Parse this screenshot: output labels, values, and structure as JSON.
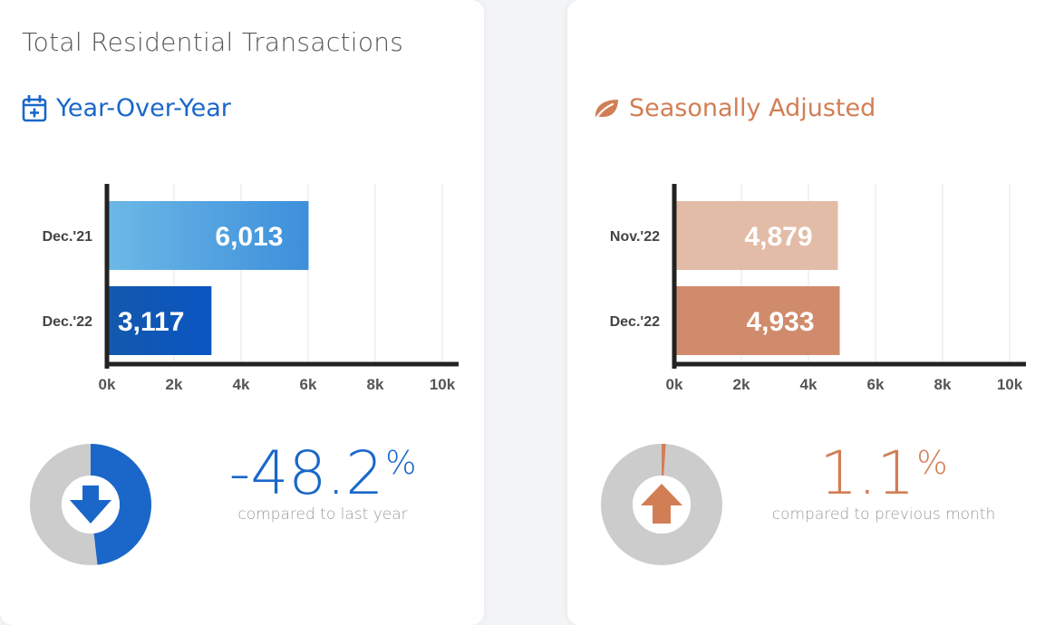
{
  "page_title": "Total Residential Transactions",
  "panels": [
    {
      "heading": "Year-Over-Year",
      "heading_icon": "calendar-plus-icon",
      "accent_color": "#1a67c9",
      "change": {
        "value": "-48.2",
        "unit": "%",
        "caption": "compared to last year",
        "direction": "down",
        "share_fraction": 0.482
      }
    },
    {
      "heading": "Seasonally Adjusted",
      "heading_icon": "leaf-icon",
      "accent_color": "#d27e55",
      "change": {
        "value": "1.1",
        "unit": "%",
        "caption": "compared to previous month",
        "direction": "up",
        "share_fraction": 0.011
      }
    }
  ],
  "chart_data": [
    {
      "type": "bar",
      "orientation": "horizontal",
      "categories": [
        "Dec.'21",
        "Dec.'22"
      ],
      "values": [
        6013,
        3117
      ],
      "value_labels": [
        "6,013",
        "3,117"
      ],
      "bar_colors": [
        [
          "#6cb8e6",
          "#3d8fdb"
        ],
        [
          "#1458ad",
          "#0a56c2"
        ]
      ],
      "xlim": [
        0,
        10000
      ],
      "xticks": [
        "0k",
        "2k",
        "4k",
        "6k",
        "8k",
        "10k"
      ],
      "grid": true
    },
    {
      "type": "bar",
      "orientation": "horizontal",
      "categories": [
        "Nov.'22",
        "Dec.'22"
      ],
      "values": [
        4879,
        4933
      ],
      "value_labels": [
        "4,879",
        "4,933"
      ],
      "bar_colors": [
        [
          "#e2bca7",
          "#e2bca7"
        ],
        [
          "#d08b6c",
          "#d08b6c"
        ]
      ],
      "xlim": [
        0,
        10000
      ],
      "xticks": [
        "0k",
        "2k",
        "4k",
        "6k",
        "8k",
        "10k"
      ],
      "grid": true
    }
  ]
}
